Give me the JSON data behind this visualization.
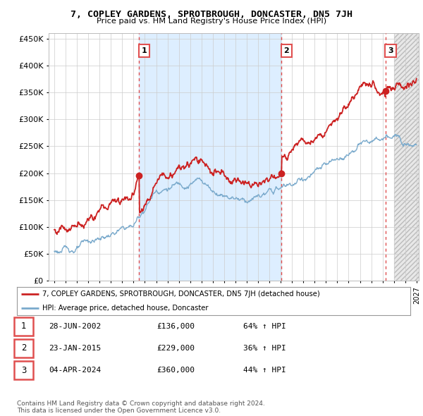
{
  "title": "7, COPLEY GARDENS, SPROTBROUGH, DONCASTER, DN5 7JH",
  "subtitle": "Price paid vs. HM Land Registry's House Price Index (HPI)",
  "ytick_values": [
    0,
    50000,
    100000,
    150000,
    200000,
    250000,
    300000,
    350000,
    400000,
    450000
  ],
  "ylim": [
    0,
    460000
  ],
  "xlim_start": 1994.5,
  "xlim_end": 2027.2,
  "sale_dates": [
    2002.49,
    2015.07,
    2024.26
  ],
  "sale_prices": [
    136000,
    229000,
    360000
  ],
  "sale_labels": [
    "1",
    "2",
    "3"
  ],
  "vline_color": "#e05050",
  "legend_property_label": "7, COPLEY GARDENS, SPROTBROUGH, DONCASTER, DN5 7JH (detached house)",
  "legend_hpi_label": "HPI: Average price, detached house, Doncaster",
  "property_line_color": "#cc2222",
  "hpi_line_color": "#7aaacc",
  "shade_color": "#ddeeff",
  "table_rows": [
    [
      "1",
      "28-JUN-2002",
      "£136,000",
      "64% ↑ HPI"
    ],
    [
      "2",
      "23-JAN-2015",
      "£229,000",
      "36% ↑ HPI"
    ],
    [
      "3",
      "04-APR-2024",
      "£360,000",
      "44% ↑ HPI"
    ]
  ],
  "footnote": "Contains HM Land Registry data © Crown copyright and database right 2024.\nThis data is licensed under the Open Government Licence v3.0.",
  "background_color": "#ffffff",
  "grid_color": "#cccccc"
}
